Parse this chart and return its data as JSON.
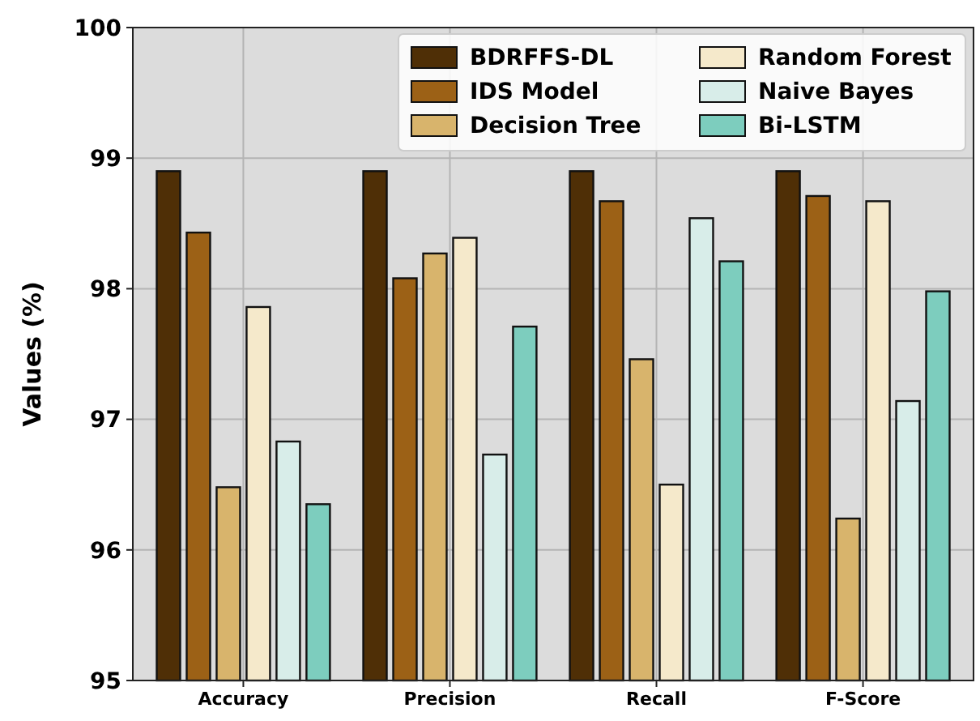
{
  "chart_data": {
    "type": "bar",
    "ylabel": "Values (%)",
    "categories": [
      "Accuracy",
      "Precision",
      "Recall",
      "F-Score"
    ],
    "series": [
      {
        "name": "BDRFFS-DL",
        "color": "#4f2f06",
        "values": [
          98.9,
          98.9,
          98.9,
          98.9
        ]
      },
      {
        "name": "IDS Model",
        "color": "#9c6116",
        "values": [
          98.43,
          98.08,
          98.67,
          98.71
        ]
      },
      {
        "name": "Decision Tree",
        "color": "#d8b46c",
        "values": [
          96.48,
          98.27,
          97.46,
          96.24
        ]
      },
      {
        "name": "Random Forest",
        "color": "#f5e9cb",
        "values": [
          97.86,
          98.39,
          96.5,
          98.67
        ]
      },
      {
        "name": "Naive Bayes",
        "color": "#d8ede9",
        "values": [
          96.83,
          96.73,
          98.54,
          97.14
        ]
      },
      {
        "name": "Bi-LSTM",
        "color": "#7dcdbe",
        "values": [
          96.35,
          97.71,
          98.21,
          97.98
        ]
      }
    ],
    "ylim": [
      95,
      100
    ],
    "yticks": [
      95,
      96,
      97,
      98,
      99,
      100
    ],
    "grid": true,
    "legend": "top right"
  }
}
